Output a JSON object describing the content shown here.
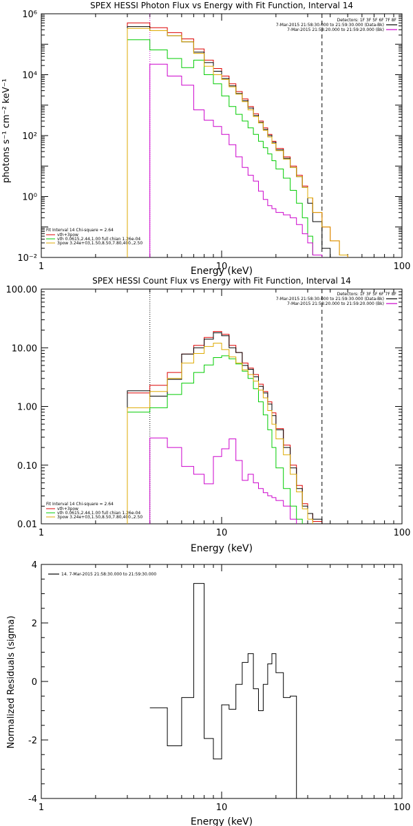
{
  "colors": {
    "total": "#000000",
    "sum_fit": "#dd0000",
    "vth": "#00cc00",
    "3pow": "#ddaa00",
    "background": "#cc00cc",
    "axis": "#000000"
  },
  "chart_data": [
    {
      "type": "line",
      "style": "histogram",
      "title": "SPEX HESSI Photon Flux vs Energy with Fit Function, Interval 14",
      "xlabel": "Energy (keV)",
      "ylabel": "photons s⁻¹ cm⁻² keV⁻¹",
      "x_scale": "log",
      "y_scale": "log",
      "xlim": [
        1,
        100
      ],
      "ylim": [
        0.01,
        1000000
      ],
      "x_ticks": [
        {
          "value": 1,
          "label": "1"
        },
        {
          "value": 10,
          "label": "10"
        },
        {
          "value": 100,
          "label": "100"
        }
      ],
      "y_ticks": [
        {
          "value": 0.01,
          "label": "10⁻²"
        },
        {
          "value": 1,
          "label": "10⁰"
        },
        {
          "value": 100,
          "label": "10²"
        },
        {
          "value": 10000,
          "label": "10⁴"
        },
        {
          "value": 1000000,
          "label": "10⁶"
        }
      ],
      "legend_header": {
        "detectors": "Detectors: 1F 3F 5F 6F 7F 8F",
        "lines": [
          {
            "text": "7-Mar-2015 21:58:30.000 to 21:59:30.000 (Data-Bk)",
            "color": "#000000"
          },
          {
            "text": "7-Mar-2015 21:58:20.000 to 21:59:20.000 (Bk)",
            "color": "#cc00cc"
          }
        ]
      },
      "fit_legend": {
        "header": "Fit Interval 14   Chi-square = 2.64",
        "items": [
          {
            "text": "vth+3pow",
            "color": "#dd0000"
          },
          {
            "text": "vth 0.0615,2.44,1.00  full chian 1.26e-04",
            "color": "#00cc00"
          },
          {
            "text": "3pow 3.24e+03,1.50,8.50,7.80,400.,2.50",
            "color": "#ddaa00"
          }
        ]
      },
      "vlines": [
        {
          "x": 4.0,
          "style": "dotted",
          "color": "#cc00cc"
        },
        {
          "x": 36.0,
          "style": "dashed",
          "color": "#000000"
        }
      ],
      "edges": [
        3,
        4,
        5,
        6,
        7,
        8,
        9,
        10,
        11,
        12,
        13,
        14,
        15,
        16,
        17,
        18,
        19,
        20,
        22,
        24,
        26,
        28,
        30,
        32,
        36,
        40,
        45,
        50
      ],
      "series": [
        {
          "name": "vth+3pow",
          "color": "#dd0000",
          "values": [
            500000,
            350000,
            240000,
            150000,
            70000,
            30000,
            16000,
            9000,
            5000,
            2800,
            1600,
            900,
            520,
            300,
            180,
            110,
            65,
            38,
            20,
            10,
            5,
            2.2,
            0.9,
            0.3,
            0.1,
            0.035,
            0.012
          ]
        },
        {
          "name": "Data-Bk",
          "color": "#000000",
          "values": [
            380000,
            280000,
            190000,
            120000,
            55000,
            25000,
            13000,
            7500,
            4300,
            2400,
            1400,
            800,
            460,
            270,
            160,
            100,
            60,
            34,
            18,
            9,
            4.5,
            2,
            0.6,
            0.15,
            0.02
          ]
        },
        {
          "name": "vth",
          "color": "#00cc00",
          "values": [
            140000,
            65000,
            34000,
            17000,
            30000,
            10000,
            5000,
            2000,
            900,
            500,
            300,
            180,
            110,
            65,
            40,
            25,
            15,
            8,
            4,
            1.6,
            0.6,
            0.2,
            0.05,
            0.012
          ]
        },
        {
          "name": "3pow",
          "color": "#ddaa00",
          "values": [
            330000,
            280000,
            190000,
            120000,
            50000,
            19000,
            10000,
            7000,
            4000,
            2300,
            1300,
            700,
            420,
            260,
            150,
            90,
            55,
            32,
            17,
            9,
            4.5,
            2,
            0.9,
            0.3,
            0.1,
            0.035,
            0.012
          ]
        },
        {
          "name": "Bk",
          "color": "#cc00cc",
          "start_index": 1,
          "values": [
            22000,
            9000,
            4500,
            700,
            320,
            200,
            110,
            50,
            20,
            9,
            5,
            3.2,
            1.5,
            0.8,
            0.5,
            0.4,
            0.3,
            0.25,
            0.2,
            0.12,
            0.06,
            0.03,
            0.012
          ]
        }
      ]
    },
    {
      "type": "line",
      "style": "histogram",
      "title": "SPEX HESSI Count Flux vs Energy with Fit Function, Interval 14",
      "xlabel": "Energy (keV)",
      "ylabel": "",
      "x_scale": "log",
      "y_scale": "log",
      "xlim": [
        1,
        100
      ],
      "ylim": [
        0.01,
        100
      ],
      "x_ticks": [
        {
          "value": 1,
          "label": "1"
        },
        {
          "value": 10,
          "label": "10"
        },
        {
          "value": 100,
          "label": "100"
        }
      ],
      "y_ticks": [
        {
          "value": 0.01,
          "label": "0.01"
        },
        {
          "value": 0.1,
          "label": "0.10"
        },
        {
          "value": 1,
          "label": "1.00"
        },
        {
          "value": 10,
          "label": "10.00"
        },
        {
          "value": 100,
          "label": "100.00"
        }
      ],
      "legend_header": {
        "detectors": "Detectors: 1F 3F 5F 6F 7F 8F",
        "lines": [
          {
            "text": "7-Mar-2015 21:58:30.000 to 21:59:30.000 (Data-Bk)",
            "color": "#000000"
          },
          {
            "text": "7-Mar-2015 21:58:20.000 to 21:59:20.000 (Bk)",
            "color": "#cc00cc"
          }
        ]
      },
      "fit_legend": {
        "header": "Fit Interval 14   Chi-square = 2.64",
        "items": [
          {
            "text": "vth+3pow",
            "color": "#dd0000"
          },
          {
            "text": "vth 0.0615,2.44,1.00  full chian 1.26e-04",
            "color": "#00cc00"
          },
          {
            "text": "3pow 3.24e+03,1.50,8.50,7.80,400.,2.50",
            "color": "#ddaa00"
          }
        ]
      },
      "vlines": [
        {
          "x": 4.0,
          "style": "dotted",
          "color": "#000000"
        },
        {
          "x": 36.0,
          "style": "dashed",
          "color": "#000000"
        }
      ],
      "edges": [
        3,
        4,
        5,
        6,
        7,
        8,
        9,
        10,
        11,
        12,
        13,
        14,
        15,
        16,
        17,
        18,
        19,
        20,
        22,
        24,
        26,
        28,
        30,
        32,
        36,
        40
      ],
      "series": [
        {
          "name": "vth+3pow",
          "color": "#dd0000",
          "values": [
            1.7,
            2.3,
            3.8,
            7.8,
            11,
            15,
            19,
            17,
            11,
            8.3,
            5.5,
            4.5,
            3.5,
            2.4,
            1.8,
            1.2,
            0.78,
            0.42,
            0.22,
            0.1,
            0.045,
            0.022,
            0.015,
            0.011
          ]
        },
        {
          "name": "Data-Bk",
          "color": "#000000",
          "values": [
            1.85,
            1.5,
            2.9,
            7.8,
            10,
            14,
            18,
            16,
            10,
            8.3,
            5,
            4.3,
            3.2,
            2.2,
            1.7,
            1.1,
            0.7,
            0.4,
            0.2,
            0.09,
            0.04,
            0.02,
            0.015,
            0.012
          ]
        },
        {
          "name": "vth",
          "color": "#00cc00",
          "values": [
            0.8,
            0.95,
            1.6,
            2.5,
            3.8,
            5.1,
            6.8,
            7.3,
            6.5,
            5.3,
            4,
            3,
            2,
            1.2,
            0.72,
            0.4,
            0.2,
            0.09,
            0.04,
            0.02,
            0.012
          ]
        },
        {
          "name": "3pow",
          "color": "#ddaa00",
          "values": [
            0.95,
            1.8,
            3,
            5.5,
            8,
            10.5,
            12,
            9.3,
            7,
            5.5,
            4.2,
            3.5,
            2.7,
            1.9,
            1.4,
            0.85,
            0.5,
            0.28,
            0.15,
            0.07,
            0.035,
            0.018,
            0.012
          ]
        },
        {
          "name": "Bk",
          "color": "#cc00cc",
          "start_index": 1,
          "values": [
            0.29,
            0.2,
            0.095,
            0.07,
            0.048,
            0.14,
            0.19,
            0.28,
            0.12,
            0.055,
            0.07,
            0.05,
            0.04,
            0.034,
            0.03,
            0.028,
            0.025,
            0.02,
            0.012
          ]
        }
      ]
    },
    {
      "type": "line",
      "style": "histogram",
      "title": "",
      "xlabel": "Energy (keV)",
      "ylabel": "Normalized Residuals (sigma)",
      "x_scale": "log",
      "y_scale": "linear",
      "xlim": [
        1,
        100
      ],
      "ylim": [
        -4,
        4
      ],
      "x_ticks": [
        {
          "value": 1,
          "label": "1"
        },
        {
          "value": 10,
          "label": "10"
        },
        {
          "value": 100,
          "label": "100"
        }
      ],
      "y_ticks": [
        {
          "value": -4,
          "label": "-4"
        },
        {
          "value": -2,
          "label": "-2"
        },
        {
          "value": 0,
          "label": "0"
        },
        {
          "value": 2,
          "label": "2"
        },
        {
          "value": 4,
          "label": "4"
        }
      ],
      "legend_text": "14.  7-Mar-2015 21:58:30.000 to 21:59:30.000",
      "edges": [
        4,
        5,
        6,
        7,
        8,
        9,
        10,
        11,
        12,
        13,
        14,
        15,
        16,
        17,
        18,
        19,
        20,
        22,
        24,
        26,
        28,
        30,
        32,
        36
      ],
      "series": [
        {
          "name": "14.  7-Mar-2015 21:58:30.000 to 21:59:30.000",
          "color": "#000000",
          "values": [
            -0.9,
            -2.2,
            -0.55,
            3.35,
            -1.95,
            -2.65,
            -0.8,
            -0.95,
            -0.1,
            0.65,
            0.95,
            -0.25,
            -1.0,
            -0.1,
            0.6,
            0.95,
            0.3,
            -0.55,
            -0.5
          ]
        }
      ]
    }
  ]
}
